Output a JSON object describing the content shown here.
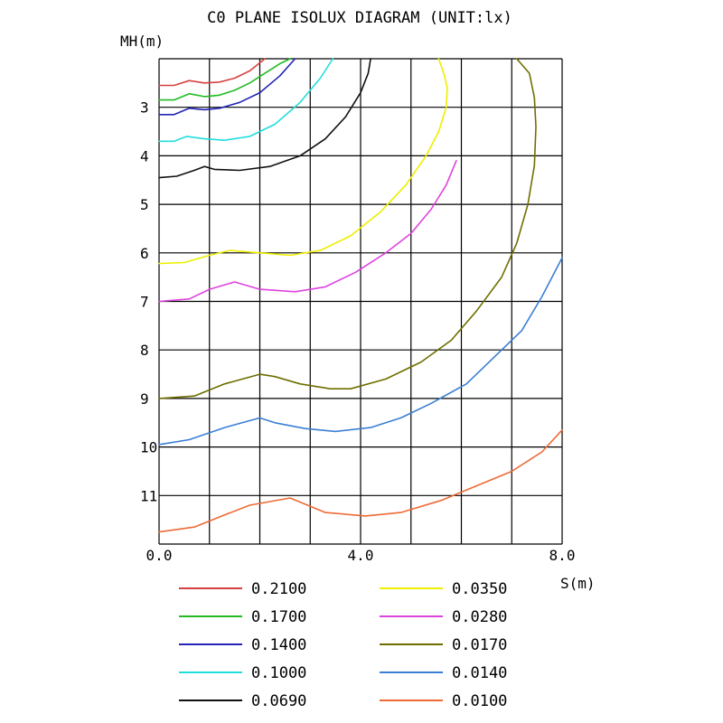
{
  "chart_data": {
    "type": "line",
    "title": "C0 PLANE ISOLUX DIAGRAM (UNIT:lx)",
    "xlabel": "S(m)",
    "ylabel": "MH(m)",
    "x_ticks": [
      "0.0",
      "4.0",
      "8.0"
    ],
    "y_ticks": [
      "3",
      "4",
      "5",
      "6",
      "7",
      "8",
      "9",
      "10",
      "11"
    ],
    "xlim": [
      0,
      8
    ],
    "ylim": [
      2,
      12
    ],
    "y_inverted": true,
    "grid": true,
    "legend_position": "bottom",
    "series": [
      {
        "name": "0.2100",
        "color": "#d84040",
        "x": [
          0,
          0.3,
          0.6,
          0.9,
          1.2,
          1.5,
          1.8,
          2.1
        ],
        "y": [
          2.55,
          2.55,
          2.45,
          2.5,
          2.48,
          2.4,
          2.25,
          2.0
        ]
      },
      {
        "name": "0.1700",
        "color": "#22bb22",
        "x": [
          0,
          0.3,
          0.6,
          0.9,
          1.2,
          1.5,
          1.8,
          2.1,
          2.4,
          2.6
        ],
        "y": [
          2.85,
          2.85,
          2.72,
          2.78,
          2.75,
          2.65,
          2.5,
          2.3,
          2.1,
          2.0
        ]
      },
      {
        "name": "0.1400",
        "color": "#2424b8",
        "x": [
          0,
          0.3,
          0.6,
          0.9,
          1.2,
          1.6,
          2.0,
          2.4,
          2.7
        ],
        "y": [
          3.15,
          3.15,
          3.02,
          3.05,
          3.02,
          2.9,
          2.7,
          2.35,
          2.0
        ]
      },
      {
        "name": "0.1000",
        "color": "#22dddd",
        "x": [
          0,
          0.3,
          0.55,
          0.9,
          1.3,
          1.8,
          2.3,
          2.8,
          3.2,
          3.45
        ],
        "y": [
          3.7,
          3.7,
          3.6,
          3.65,
          3.68,
          3.6,
          3.35,
          2.9,
          2.4,
          2.0
        ]
      },
      {
        "name": "0.0690",
        "color": "#111111",
        "x": [
          0,
          0.35,
          0.7,
          0.9,
          1.1,
          1.6,
          2.2,
          2.8,
          3.3,
          3.7,
          4.0,
          4.15,
          4.2
        ],
        "y": [
          4.45,
          4.42,
          4.3,
          4.22,
          4.28,
          4.3,
          4.22,
          4.0,
          3.65,
          3.2,
          2.7,
          2.3,
          2.0
        ]
      },
      {
        "name": "0.0350",
        "color": "#eeee00",
        "x": [
          0,
          0.5,
          1.0,
          1.4,
          2.0,
          2.6,
          3.2,
          3.8,
          4.4,
          4.9,
          5.3,
          5.55,
          5.7,
          5.72,
          5.65,
          5.55
        ],
        "y": [
          6.22,
          6.2,
          6.05,
          5.95,
          6.0,
          6.05,
          5.95,
          5.65,
          5.15,
          4.6,
          4.0,
          3.5,
          3.0,
          2.6,
          2.3,
          2.0
        ]
      },
      {
        "name": "0.0280",
        "color": "#dd44dd",
        "x": [
          0,
          0.6,
          1.0,
          1.5,
          2.0,
          2.7,
          3.3,
          3.9,
          4.5,
          5.0,
          5.4,
          5.7,
          5.9
        ],
        "y": [
          7.0,
          6.95,
          6.75,
          6.6,
          6.75,
          6.8,
          6.7,
          6.4,
          6.0,
          5.6,
          5.1,
          4.6,
          4.1
        ]
      },
      {
        "name": "0.0170",
        "color": "#6e6e00",
        "x": [
          0,
          0.7,
          1.3,
          2.0,
          2.3,
          2.8,
          3.4,
          3.8,
          4.5,
          5.2,
          5.8,
          6.3,
          6.8,
          7.1,
          7.32,
          7.45,
          7.48,
          7.45,
          7.35,
          7.1
        ],
        "y": [
          9.0,
          8.95,
          8.7,
          8.5,
          8.55,
          8.7,
          8.8,
          8.8,
          8.6,
          8.25,
          7.8,
          7.2,
          6.5,
          5.8,
          5.0,
          4.2,
          3.4,
          2.8,
          2.3,
          1.95
        ]
      },
      {
        "name": "0.0140",
        "color": "#3a7fd5",
        "x": [
          0,
          0.6,
          1.3,
          2.0,
          2.3,
          2.9,
          3.5,
          4.2,
          4.8,
          5.4,
          6.1,
          6.7,
          7.2,
          7.6,
          8.0
        ],
        "y": [
          9.95,
          9.85,
          9.6,
          9.4,
          9.5,
          9.62,
          9.68,
          9.6,
          9.4,
          9.1,
          8.7,
          8.1,
          7.6,
          6.9,
          6.1
        ]
      },
      {
        "name": "0.0100",
        "color": "#ee6a35",
        "x": [
          0,
          0.7,
          1.3,
          1.8,
          2.6,
          3.3,
          4.1,
          4.8,
          5.6,
          6.3,
          7.0,
          7.6,
          8.0
        ],
        "y": [
          11.75,
          11.65,
          11.4,
          11.2,
          11.05,
          11.35,
          11.42,
          11.35,
          11.1,
          10.8,
          10.5,
          10.1,
          9.65
        ]
      }
    ]
  }
}
